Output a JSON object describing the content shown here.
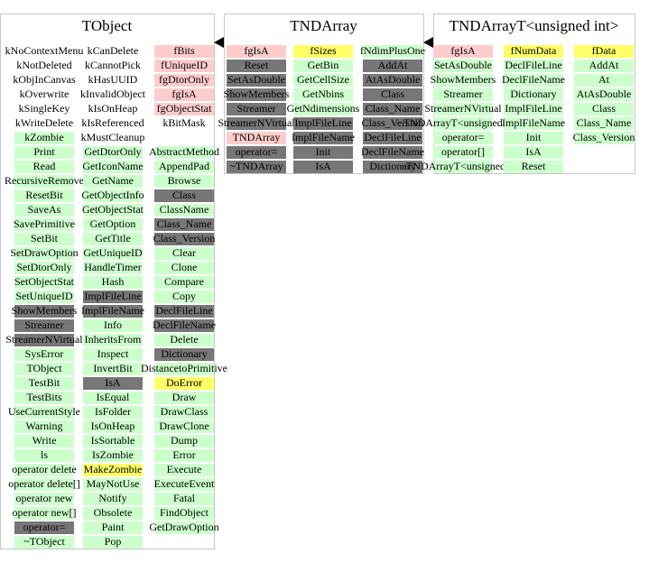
{
  "boxes": [
    {
      "title": "TObject",
      "columns": [
        [
          [
            {
              "label": "kNoContextMenu",
              "style": "plain"
            },
            {
              "label": "kNotDeleted",
              "style": "plain"
            },
            {
              "label": "kObjInCanvas",
              "style": "plain"
            },
            {
              "label": "kOverwrite",
              "style": "plain"
            },
            {
              "label": "kSingleKey",
              "style": "plain"
            },
            {
              "label": "kWriteDelete",
              "style": "plain"
            },
            {
              "label": "kZombie",
              "style": "green"
            },
            {
              "label": "Print",
              "style": "green"
            },
            {
              "label": "Read",
              "style": "green"
            },
            {
              "label": "RecursiveRemove",
              "style": "green"
            },
            {
              "label": "ResetBit",
              "style": "green"
            },
            {
              "label": "SaveAs",
              "style": "green"
            },
            {
              "label": "SavePrimitive",
              "style": "green"
            },
            {
              "label": "SetBit",
              "style": "green"
            },
            {
              "label": "SetDrawOption",
              "style": "green"
            },
            {
              "label": "SetDtorOnly",
              "style": "green"
            },
            {
              "label": "SetObjectStat",
              "style": "green"
            },
            {
              "label": "SetUniqueID",
              "style": "green"
            },
            {
              "label": "ShowMembers",
              "style": "gray"
            },
            {
              "label": "Streamer",
              "style": "gray"
            },
            {
              "label": "StreamerNVirtual",
              "style": "gray"
            },
            {
              "label": "SysError",
              "style": "green"
            },
            {
              "label": "TObject",
              "style": "green"
            },
            {
              "label": "TestBit",
              "style": "green"
            },
            {
              "label": "TestBits",
              "style": "green"
            },
            {
              "label": "UseCurrentStyle",
              "style": "green"
            },
            {
              "label": "Warning",
              "style": "green"
            },
            {
              "label": "Write",
              "style": "green"
            },
            {
              "label": "ls",
              "style": "green"
            },
            {
              "label": "operator delete",
              "style": "green"
            },
            {
              "label": "operator delete[]",
              "style": "green"
            },
            {
              "label": "operator new",
              "style": "green"
            },
            {
              "label": "operator new[]",
              "style": "green"
            },
            {
              "label": "operator=",
              "style": "gray"
            },
            {
              "label": "~TObject",
              "style": "green"
            }
          ]
        ],
        [
          [
            {
              "label": "kCanDelete",
              "style": "plain"
            },
            {
              "label": "kCannotPick",
              "style": "plain"
            },
            {
              "label": "kHasUUID",
              "style": "plain"
            },
            {
              "label": "kInvalidObject",
              "style": "plain"
            },
            {
              "label": "kIsOnHeap",
              "style": "plain"
            },
            {
              "label": "kIsReferenced",
              "style": "plain"
            },
            {
              "label": "kMustCleanup",
              "style": "plain"
            },
            {
              "label": "GetDtorOnly",
              "style": "green"
            },
            {
              "label": "GetIconName",
              "style": "green"
            },
            {
              "label": "GetName",
              "style": "green"
            },
            {
              "label": "GetObjectInfo",
              "style": "green"
            },
            {
              "label": "GetObjectStat",
              "style": "green"
            },
            {
              "label": "GetOption",
              "style": "green"
            },
            {
              "label": "GetTitle",
              "style": "green"
            },
            {
              "label": "GetUniqueID",
              "style": "green"
            },
            {
              "label": "HandleTimer",
              "style": "green"
            },
            {
              "label": "Hash",
              "style": "green"
            },
            {
              "label": "ImplFileLine",
              "style": "gray"
            },
            {
              "label": "ImplFileName",
              "style": "gray"
            },
            {
              "label": "Info",
              "style": "green"
            },
            {
              "label": "InheritsFrom",
              "style": "green"
            },
            {
              "label": "Inspect",
              "style": "green"
            },
            {
              "label": "InvertBit",
              "style": "green"
            },
            {
              "label": "IsA",
              "style": "gray"
            },
            {
              "label": "IsEqual",
              "style": "green"
            },
            {
              "label": "IsFolder",
              "style": "green"
            },
            {
              "label": "IsOnHeap",
              "style": "green"
            },
            {
              "label": "IsSortable",
              "style": "green"
            },
            {
              "label": "IsZombie",
              "style": "green"
            },
            {
              "label": "MakeZombie",
              "style": "yellow"
            },
            {
              "label": "MayNotUse",
              "style": "green"
            },
            {
              "label": "Notify",
              "style": "green"
            },
            {
              "label": "Obsolete",
              "style": "green"
            },
            {
              "label": "Paint",
              "style": "green"
            },
            {
              "label": "Pop",
              "style": "green"
            }
          ]
        ],
        [
          [
            {
              "label": "fBits",
              "style": "pink"
            },
            {
              "label": "fUniqueID",
              "style": "pink"
            },
            {
              "label": "fgDtorOnly",
              "style": "pink"
            },
            {
              "label": "fgIsA",
              "style": "pink"
            },
            {
              "label": "fgObjectStat",
              "style": "pink"
            },
            {
              "label": "kBitMask",
              "style": "plain"
            }
          ],
          [
            {
              "label": "AbstractMethod",
              "style": "green"
            },
            {
              "label": "AppendPad",
              "style": "green"
            },
            {
              "label": "Browse",
              "style": "green"
            },
            {
              "label": "Class",
              "style": "gray"
            },
            {
              "label": "ClassName",
              "style": "green"
            },
            {
              "label": "Class_Name",
              "style": "gray"
            },
            {
              "label": "Class_Version",
              "style": "gray"
            },
            {
              "label": "Clear",
              "style": "green"
            },
            {
              "label": "Clone",
              "style": "green"
            },
            {
              "label": "Compare",
              "style": "green"
            },
            {
              "label": "Copy",
              "style": "green"
            },
            {
              "label": "DeclFileLine",
              "style": "gray"
            },
            {
              "label": "DeclFileName",
              "style": "gray"
            },
            {
              "label": "Delete",
              "style": "green"
            },
            {
              "label": "Dictionary",
              "style": "gray"
            },
            {
              "label": "DistancetoPrimitive",
              "style": "green"
            },
            {
              "label": "DoError",
              "style": "yellow"
            },
            {
              "label": "Draw",
              "style": "green"
            },
            {
              "label": "DrawClass",
              "style": "green"
            },
            {
              "label": "DrawClone",
              "style": "green"
            },
            {
              "label": "Dump",
              "style": "green"
            },
            {
              "label": "Error",
              "style": "green"
            },
            {
              "label": "Execute",
              "style": "green"
            },
            {
              "label": "ExecuteEvent",
              "style": "green"
            },
            {
              "label": "Fatal",
              "style": "green"
            },
            {
              "label": "FindObject",
              "style": "green"
            },
            {
              "label": "GetDrawOption",
              "style": "green"
            }
          ]
        ]
      ]
    },
    {
      "title": "TNDArray",
      "columns": [
        [
          [
            {
              "label": "fgIsA",
              "style": "pink"
            },
            {
              "label": "Reset",
              "style": "gray"
            },
            {
              "label": "SetAsDouble",
              "style": "gray"
            },
            {
              "label": "ShowMembers",
              "style": "gray"
            },
            {
              "label": "Streamer",
              "style": "gray"
            },
            {
              "label": "StreamerNVirtual",
              "style": "gray"
            },
            {
              "label": "TNDArray",
              "style": "pink"
            },
            {
              "label": "operator=",
              "style": "gray"
            },
            {
              "label": "~TNDArray",
              "style": "gray"
            }
          ]
        ],
        [
          [
            {
              "label": "fSizes",
              "style": "yellow"
            },
            {
              "label": "GetBin",
              "style": "green"
            },
            {
              "label": "GetCellSize",
              "style": "green"
            },
            {
              "label": "GetNbins",
              "style": "green"
            },
            {
              "label": "GetNdimensions",
              "style": "green"
            },
            {
              "label": "ImplFileLine",
              "style": "gray"
            },
            {
              "label": "ImplFileName",
              "style": "gray"
            },
            {
              "label": "Init",
              "style": "gray"
            },
            {
              "label": "IsA",
              "style": "gray"
            }
          ]
        ],
        [
          [
            {
              "label": "fNdimPlusOne",
              "style": "green"
            },
            {
              "label": "AddAt",
              "style": "gray"
            },
            {
              "label": "AtAsDouble",
              "style": "gray"
            },
            {
              "label": "Class",
              "style": "gray"
            },
            {
              "label": "Class_Name",
              "style": "gray"
            },
            {
              "label": "Class_Version",
              "style": "gray"
            },
            {
              "label": "DeclFileLine",
              "style": "gray"
            },
            {
              "label": "DeclFileName",
              "style": "gray"
            },
            {
              "label": "Dictionary",
              "style": "gray"
            }
          ]
        ]
      ]
    },
    {
      "title": "TNDArrayT<unsigned int>",
      "columns": [
        [
          [
            {
              "label": "fgIsA",
              "style": "pink"
            },
            {
              "label": "SetAsDouble",
              "style": "green"
            },
            {
              "label": "ShowMembers",
              "style": "green"
            },
            {
              "label": "Streamer",
              "style": "green"
            },
            {
              "label": "StreamerNVirtual",
              "style": "green"
            },
            {
              "label": "TNDArrayT<unsigned int>",
              "style": "green"
            },
            {
              "label": "operator=",
              "style": "green"
            },
            {
              "label": "operator[]",
              "style": "green"
            },
            {
              "label": "~TNDArrayT<unsigned int>",
              "style": "green"
            }
          ]
        ],
        [
          [
            {
              "label": "fNumData",
              "style": "yellow"
            },
            {
              "label": "DeclFileLine",
              "style": "green"
            },
            {
              "label": "DeclFileName",
              "style": "green"
            },
            {
              "label": "Dictionary",
              "style": "green"
            },
            {
              "label": "ImplFileLine",
              "style": "green"
            },
            {
              "label": "ImplFileName",
              "style": "green"
            },
            {
              "label": "Init",
              "style": "green"
            },
            {
              "label": "IsA",
              "style": "green"
            },
            {
              "label": "Reset",
              "style": "green"
            }
          ]
        ],
        [
          [
            {
              "label": "fData",
              "style": "yellow"
            },
            {
              "label": "AddAt",
              "style": "green"
            },
            {
              "label": "At",
              "style": "green"
            },
            {
              "label": "AtAsDouble",
              "style": "green"
            },
            {
              "label": "Class",
              "style": "green"
            },
            {
              "label": "Class_Name",
              "style": "green"
            },
            {
              "label": "Class_Version",
              "style": "green"
            }
          ]
        ]
      ]
    }
  ]
}
